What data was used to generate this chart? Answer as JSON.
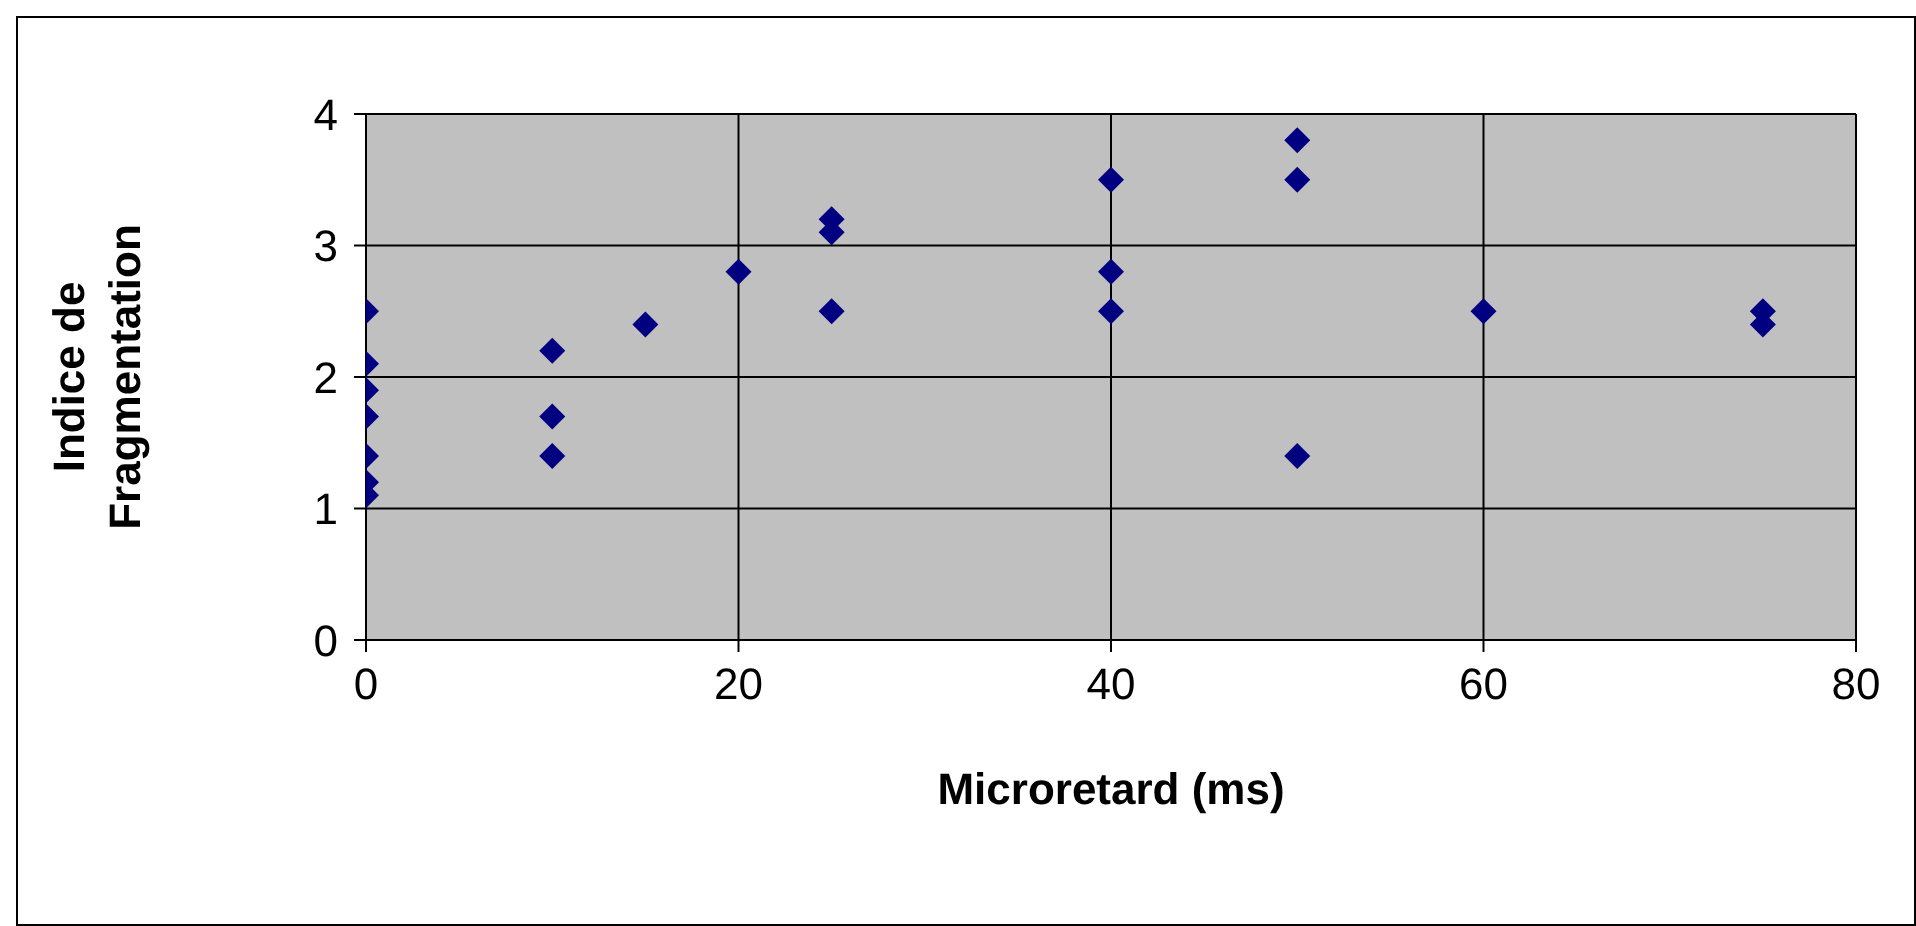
{
  "chart_data": {
    "type": "scatter",
    "xlabel": "Microretard (ms)",
    "ylabel": "Indice de Fragmentation",
    "x": [
      0,
      0,
      0,
      0,
      0,
      0,
      0,
      10,
      10,
      10,
      15,
      20,
      25,
      25,
      25,
      40,
      40,
      40,
      50,
      50,
      50,
      60,
      75,
      75
    ],
    "series": [
      {
        "color": "#000080",
        "values": [
          2.5,
          2.1,
          1.9,
          1.7,
          1.4,
          1.2,
          1.1,
          2.2,
          1.7,
          1.4,
          2.4,
          2.8,
          3.2,
          3.1,
          2.5,
          3.5,
          2.8,
          2.5,
          3.8,
          3.5,
          1.4,
          2.5,
          2.5,
          2.4
        ]
      }
    ],
    "xlim": [
      0,
      80
    ],
    "xticks": [
      0,
      20,
      40,
      60,
      80
    ],
    "ylim": [
      0,
      4
    ],
    "yticks": [
      0,
      1,
      2,
      3,
      4
    ],
    "grid": true,
    "marker": "diamond"
  }
}
